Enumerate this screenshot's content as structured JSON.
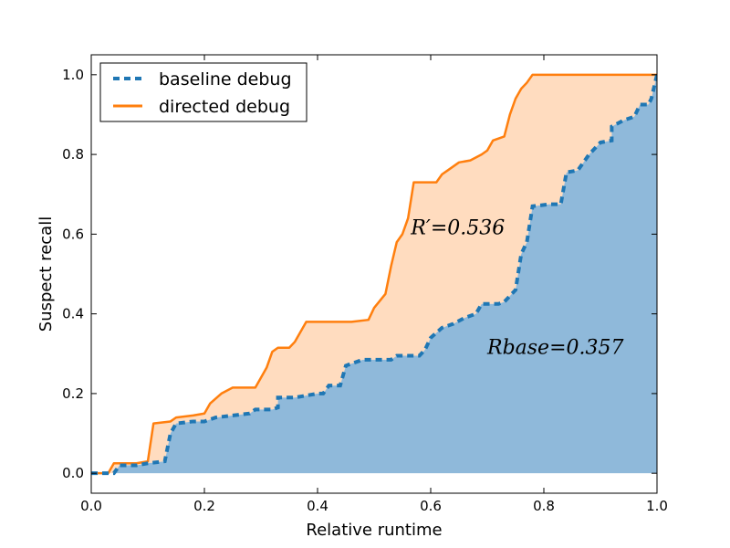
{
  "chart_data": {
    "type": "area",
    "xlabel": "Relative runtime",
    "ylabel": "Suspect recall",
    "xlim": [
      0.0,
      1.0
    ],
    "ylim": [
      -0.05,
      1.05
    ],
    "x_ticks": [
      "0.0",
      "0.2",
      "0.4",
      "0.6",
      "0.8",
      "1.0"
    ],
    "y_ticks": [
      "0.0",
      "0.2",
      "0.4",
      "0.6",
      "0.8",
      "1.0"
    ],
    "grid": false,
    "legend": {
      "placement": "top-left"
    },
    "series": [
      {
        "name": "baseline debug",
        "line_style": "dashed",
        "color": "#1f77b4",
        "fill_color": "#8fb9da",
        "points": [
          [
            0.0,
            0.0
          ],
          [
            0.04,
            0.0
          ],
          [
            0.05,
            0.02
          ],
          [
            0.08,
            0.02
          ],
          [
            0.1,
            0.025
          ],
          [
            0.13,
            0.03
          ],
          [
            0.14,
            0.1
          ],
          [
            0.15,
            0.125
          ],
          [
            0.18,
            0.13
          ],
          [
            0.2,
            0.13
          ],
          [
            0.22,
            0.14
          ],
          [
            0.25,
            0.145
          ],
          [
            0.28,
            0.15
          ],
          [
            0.29,
            0.16
          ],
          [
            0.32,
            0.16
          ],
          [
            0.33,
            0.165
          ],
          [
            0.33,
            0.19
          ],
          [
            0.36,
            0.19
          ],
          [
            0.4,
            0.2
          ],
          [
            0.41,
            0.2
          ],
          [
            0.42,
            0.22
          ],
          [
            0.44,
            0.22
          ],
          [
            0.45,
            0.27
          ],
          [
            0.48,
            0.285
          ],
          [
            0.53,
            0.285
          ],
          [
            0.54,
            0.295
          ],
          [
            0.58,
            0.295
          ],
          [
            0.59,
            0.31
          ],
          [
            0.6,
            0.34
          ],
          [
            0.62,
            0.365
          ],
          [
            0.64,
            0.375
          ],
          [
            0.66,
            0.39
          ],
          [
            0.68,
            0.4
          ],
          [
            0.69,
            0.425
          ],
          [
            0.72,
            0.425
          ],
          [
            0.73,
            0.43
          ],
          [
            0.75,
            0.46
          ],
          [
            0.76,
            0.55
          ],
          [
            0.77,
            0.58
          ],
          [
            0.78,
            0.67
          ],
          [
            0.81,
            0.675
          ],
          [
            0.83,
            0.675
          ],
          [
            0.84,
            0.755
          ],
          [
            0.86,
            0.76
          ],
          [
            0.87,
            0.78
          ],
          [
            0.88,
            0.8
          ],
          [
            0.9,
            0.83
          ],
          [
            0.92,
            0.835
          ],
          [
            0.92,
            0.87
          ],
          [
            0.94,
            0.885
          ],
          [
            0.96,
            0.895
          ],
          [
            0.97,
            0.925
          ],
          [
            0.985,
            0.925
          ],
          [
            0.99,
            0.94
          ],
          [
            1.0,
            1.0
          ]
        ]
      },
      {
        "name": "directed debug",
        "line_style": "solid",
        "color": "#ff7f0e",
        "fill_color": "#ffdcbf",
        "points": [
          [
            0.0,
            0.0
          ],
          [
            0.03,
            0.0
          ],
          [
            0.04,
            0.025
          ],
          [
            0.08,
            0.025
          ],
          [
            0.1,
            0.03
          ],
          [
            0.11,
            0.125
          ],
          [
            0.14,
            0.13
          ],
          [
            0.15,
            0.14
          ],
          [
            0.18,
            0.145
          ],
          [
            0.2,
            0.15
          ],
          [
            0.21,
            0.175
          ],
          [
            0.23,
            0.2
          ],
          [
            0.25,
            0.215
          ],
          [
            0.29,
            0.215
          ],
          [
            0.3,
            0.24
          ],
          [
            0.31,
            0.265
          ],
          [
            0.32,
            0.305
          ],
          [
            0.33,
            0.315
          ],
          [
            0.35,
            0.315
          ],
          [
            0.36,
            0.33
          ],
          [
            0.37,
            0.355
          ],
          [
            0.38,
            0.38
          ],
          [
            0.42,
            0.38
          ],
          [
            0.46,
            0.38
          ],
          [
            0.49,
            0.385
          ],
          [
            0.5,
            0.415
          ],
          [
            0.52,
            0.45
          ],
          [
            0.53,
            0.52
          ],
          [
            0.54,
            0.58
          ],
          [
            0.55,
            0.6
          ],
          [
            0.56,
            0.64
          ],
          [
            0.57,
            0.73
          ],
          [
            0.61,
            0.73
          ],
          [
            0.62,
            0.75
          ],
          [
            0.63,
            0.76
          ],
          [
            0.65,
            0.78
          ],
          [
            0.67,
            0.785
          ],
          [
            0.69,
            0.8
          ],
          [
            0.7,
            0.81
          ],
          [
            0.71,
            0.835
          ],
          [
            0.73,
            0.845
          ],
          [
            0.74,
            0.9
          ],
          [
            0.75,
            0.94
          ],
          [
            0.76,
            0.965
          ],
          [
            0.77,
            0.98
          ],
          [
            0.78,
            1.0
          ],
          [
            1.0,
            1.0
          ]
        ]
      }
    ],
    "annotations": [
      {
        "text": "R′=0.536",
        "x": 0.565,
        "y": 0.6
      },
      {
        "text": "Rbase=0.357",
        "x": 0.7,
        "y": 0.3
      }
    ]
  }
}
